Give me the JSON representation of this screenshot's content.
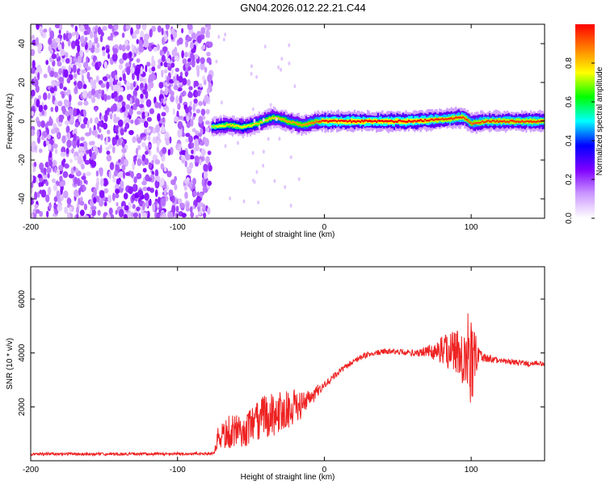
{
  "title": "GN04.2026.012.22.21.C44",
  "chart_data": [
    {
      "type": "heatmap",
      "xlabel": "Height of straight line (km)",
      "ylabel": "Frequency (Hz)",
      "xlim": [
        -200,
        150
      ],
      "ylim": [
        -50,
        50
      ],
      "xticks": [
        -200,
        -100,
        0,
        100
      ],
      "yticks": [
        -40,
        -20,
        0,
        20,
        40
      ],
      "colorbar": {
        "label": "Normalized spectral amplitude",
        "range": [
          0,
          1
        ],
        "ticks": [
          "0.0",
          "0.2",
          "0.4",
          "0.6",
          "0.8"
        ],
        "colormap": [
          "#ffffff",
          "#cc99ff",
          "#7f00ff",
          "#0000ff",
          "#00ffff",
          "#00ff00",
          "#ffff00",
          "#ff8000",
          "#ff0000"
        ]
      },
      "noise_region": {
        "x": [
          -200,
          -77
        ],
        "y": [
          -50,
          50
        ],
        "amplitude_range": [
          0.05,
          0.25
        ]
      },
      "signal_trace": {
        "x": [
          -77,
          -65,
          -55,
          -45,
          -35,
          -25,
          -15,
          -5,
          0,
          20,
          40,
          60,
          80,
          95,
          100,
          110,
          130,
          150
        ],
        "freq": [
          -3,
          -2,
          -3,
          -1,
          2,
          0,
          -2,
          0,
          0,
          0,
          0,
          0,
          1,
          2,
          -1,
          0,
          0,
          0
        ],
        "peak_amplitude": [
          0.7,
          0.8,
          0.75,
          0.8,
          0.8,
          0.85,
          0.85,
          0.9,
          1,
          1,
          1,
          1,
          0.95,
          0.95,
          0.9,
          0.95,
          0.95,
          0.95
        ]
      }
    },
    {
      "type": "line",
      "xlabel": "Height of straight line (km)",
      "ylabel": "SNR (10 * v/v)",
      "xlim": [
        -200,
        150
      ],
      "ylim": [
        0,
        7200
      ],
      "xticks": [
        -200,
        -100,
        0,
        100
      ],
      "yticks": [
        2000,
        4000,
        6000
      ],
      "color": "#ee2222",
      "series": [
        {
          "x": [
            -200,
            -150,
            -100,
            -75,
            -72,
            -65,
            -60,
            -55,
            -50,
            -45,
            -40,
            -35,
            -30,
            -25,
            -20,
            -15,
            -10,
            -5,
            0,
            10,
            20,
            30,
            40,
            50,
            60,
            70,
            80,
            85,
            90,
            95,
            98,
            100,
            102,
            105,
            110,
            120,
            130,
            140,
            150
          ],
          "y": [
            250,
            250,
            250,
            270,
            900,
            1000,
            1100,
            1000,
            1300,
            1400,
            1700,
            1700,
            1800,
            1900,
            2000,
            2050,
            2300,
            2500,
            2800,
            3300,
            3700,
            3950,
            4050,
            4050,
            4000,
            4050,
            4100,
            4150,
            4050,
            3900,
            3800,
            3700,
            3800,
            3900,
            3800,
            3700,
            3650,
            3600,
            3600
          ],
          "noise_amplitude": [
            50,
            50,
            50,
            50,
            500,
            600,
            600,
            500,
            700,
            800,
            900,
            800,
            800,
            700,
            600,
            500,
            400,
            250,
            150,
            120,
            100,
            100,
            100,
            100,
            120,
            200,
            500,
            800,
            900,
            1100,
            1500,
            2200,
            1200,
            300,
            150,
            100,
            100,
            100,
            100
          ]
        }
      ]
    }
  ]
}
